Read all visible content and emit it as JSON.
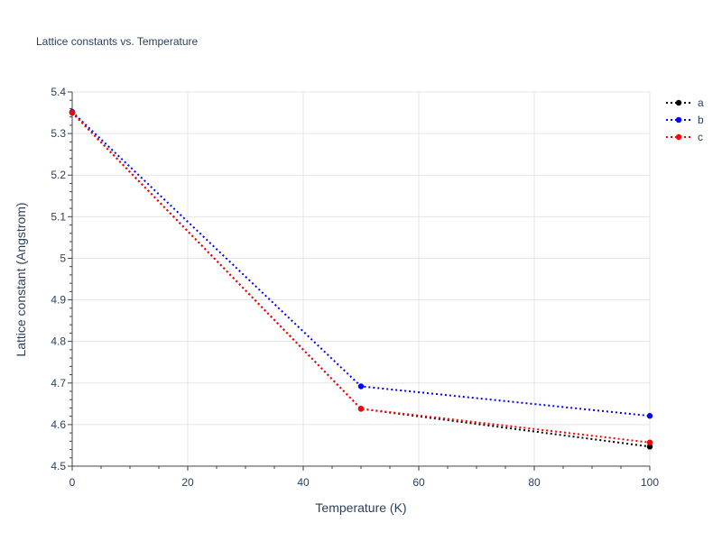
{
  "chart_data": {
    "type": "line",
    "title": "Lattice constants vs. Temperature",
    "xlabel": "Temperature (K)",
    "ylabel": "Lattice constant (Angstrom)",
    "xlim": [
      0,
      100
    ],
    "ylim": [
      4.5,
      5.4
    ],
    "xticks": [
      0,
      20,
      40,
      60,
      80,
      100
    ],
    "yticks": [
      4.5,
      4.6,
      4.7,
      4.8,
      4.9,
      5,
      5.1,
      5.2,
      5.3,
      5.4
    ],
    "xtick_labels": [
      "0",
      "20",
      "40",
      "60",
      "80",
      "100"
    ],
    "ytick_labels": [
      "4.5",
      "4.6",
      "4.7",
      "4.8",
      "4.9",
      "5",
      "5.1",
      "5.2",
      "5.3",
      "5.4"
    ],
    "grid": true,
    "legend_position": "top-right",
    "line_style": "dotted",
    "x": [
      0,
      50,
      100
    ],
    "series": [
      {
        "name": "a",
        "color": "#000000",
        "values": [
          5.35,
          4.638,
          4.547
        ]
      },
      {
        "name": "b",
        "color": "#0000ff",
        "values": [
          5.352,
          4.692,
          4.621
        ]
      },
      {
        "name": "c",
        "color": "#ff0000",
        "values": [
          5.35,
          4.638,
          4.557
        ]
      }
    ]
  }
}
